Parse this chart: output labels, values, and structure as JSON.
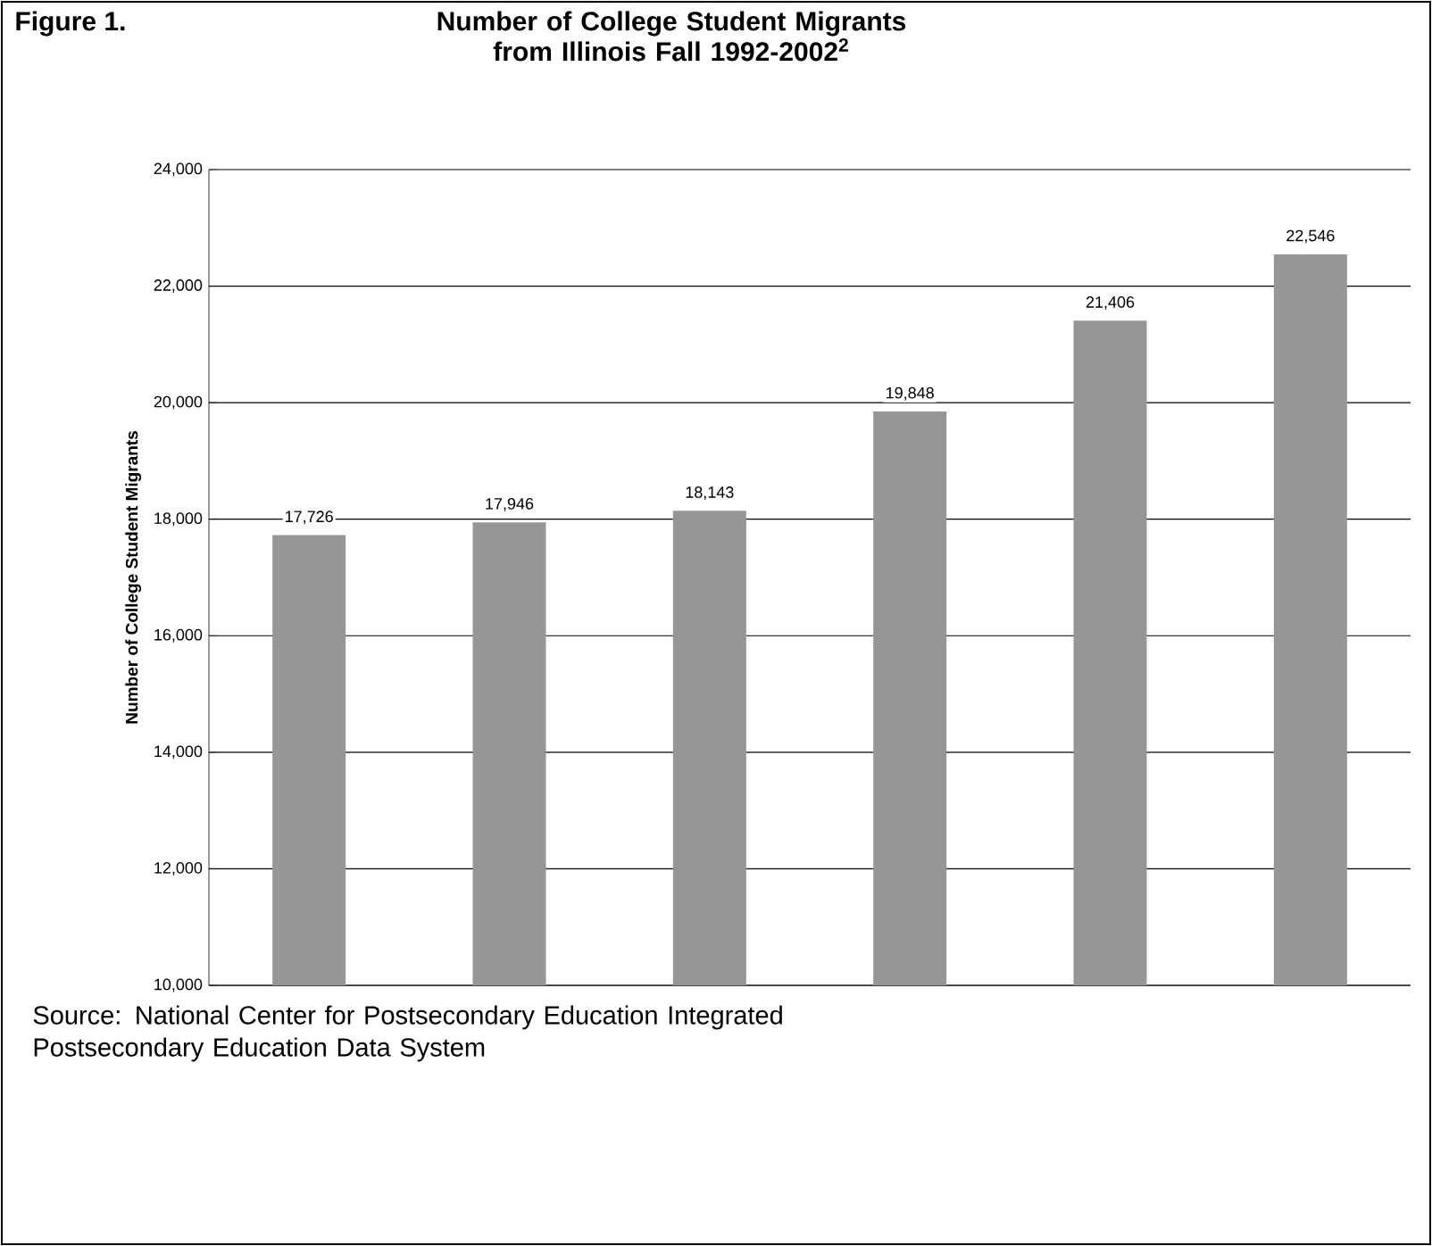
{
  "chart_data": {
    "type": "bar",
    "title": "Number of College Student Migrants from Illinois Fall 1992-2002$^{2}$",
    "ylabel": "Number of College Student Migrants",
    "annotations": [
      "Figure 1.",
      "Source: National Center for Postsecondary Education Integrated Postsecondary Education Data System"
    ],
    "categories": [
      null,
      null,
      null,
      null,
      null,
      null
    ],
    "values": [
      17726,
      17946,
      18143,
      19848,
      21406,
      22546
    ],
    "color": "#969696",
    "ylim": [
      10000,
      24000
    ],
    "yticks": [
      {
        "value": 10000,
        "label": "10,000"
      },
      {
        "value": 12000,
        "label": "12,000"
      },
      {
        "value": 14000,
        "label": "14,000"
      },
      {
        "value": 16000,
        "label": "16,000"
      },
      {
        "value": 18000,
        "label": "18,000"
      },
      {
        "value": 20000,
        "label": "20,000"
      },
      {
        "value": 22000,
        "label": "22,000"
      },
      {
        "value": 24000,
        "label": "24,000"
      }
    ],
    "value_labels": [
      "17,726",
      "17,946",
      "18,143",
      "19,848",
      "21,406",
      "22,546"
    ],
    "grid": "y"
  }
}
